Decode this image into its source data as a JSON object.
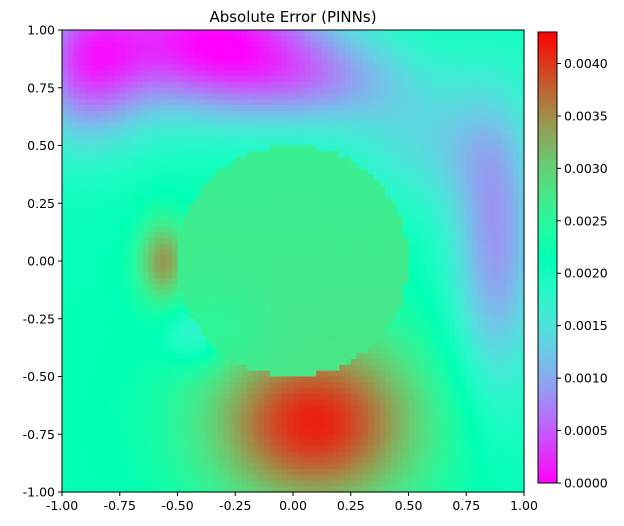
{
  "chart_data": {
    "type": "heatmap",
    "title": "Absolute Error (PINNs)",
    "xlabel": "",
    "ylabel": "",
    "xlim": [
      -1.0,
      1.0
    ],
    "ylim": [
      -1.0,
      1.0
    ],
    "x_ticks": [
      "-1.00",
      "-0.75",
      "-0.50",
      "-0.25",
      "0.00",
      "0.25",
      "0.50",
      "0.75",
      "1.00"
    ],
    "y_ticks": [
      "1.00",
      "0.75",
      "0.50",
      "0.25",
      "0.00",
      "-0.25",
      "-0.50",
      "-0.75",
      "-1.00"
    ],
    "colormap": "rainbow",
    "colorbar": {
      "range": [
        0.0,
        0.0043
      ],
      "ticks": [
        "0.0000",
        "0.0005",
        "0.0010",
        "0.0015",
        "0.0020",
        "0.0025",
        "0.0030",
        "0.0035",
        "0.0040"
      ]
    },
    "inclusion": {
      "shape": "circle",
      "center": [
        0.0,
        0.0
      ],
      "radius": 0.5,
      "value_inside": 0.0027
    },
    "grid": false,
    "notable_regions": [
      {
        "x": 0.0,
        "y": -0.55,
        "value": 0.0043
      },
      {
        "x": -0.55,
        "y": 0.0,
        "value": 0.0034
      },
      {
        "x": -0.45,
        "y": 0.95,
        "value": 0.0
      },
      {
        "x": 0.85,
        "y": 0.0,
        "value": 0.001
      },
      {
        "x": -0.9,
        "y": -0.9,
        "value": 0.002
      }
    ]
  }
}
